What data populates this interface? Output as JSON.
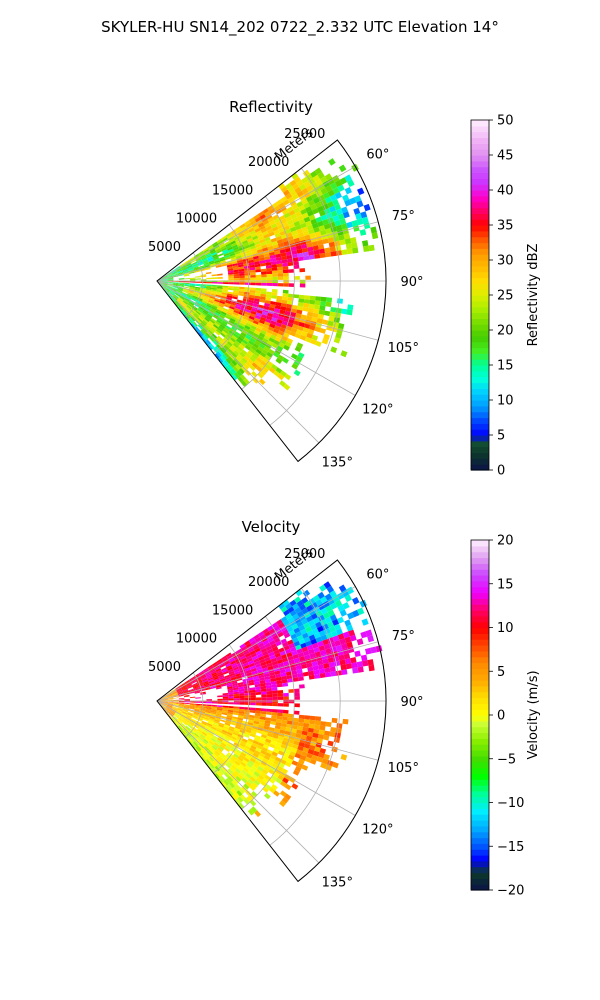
{
  "figure": {
    "title": "SKYLER-HU  SN14_202  0722_2.332 UTC Elevation 14°"
  },
  "chart_data": [
    {
      "type": "heatmap",
      "title": "Reflectivity",
      "projection": "polar-sector",
      "theta_range_deg": [
        52,
        142
      ],
      "theta_zero": "north",
      "theta_direction": "clockwise",
      "r_range_m": [
        0,
        25000
      ],
      "r_ticks": [
        5000,
        10000,
        15000,
        20000,
        25000
      ],
      "r_tick_labels": [
        "5000",
        "10000",
        "15000",
        "20000",
        "25000"
      ],
      "r_label": "Meters",
      "theta_ticks": [
        60,
        75,
        90,
        105,
        120,
        135
      ],
      "theta_tick_labels": [
        "60°",
        "75°",
        "90°",
        "105°",
        "120°",
        "135°"
      ],
      "grid": true,
      "colorbar": {
        "label": "Reflectivity dBZ",
        "range": [
          0,
          50
        ],
        "ticks": [
          0,
          5,
          10,
          15,
          20,
          25,
          30,
          35,
          40,
          45,
          50
        ],
        "tick_labels": [
          "0",
          "5",
          "10",
          "15",
          "20",
          "25",
          "30",
          "35",
          "40",
          "45",
          "50"
        ],
        "stops": [
          {
            "v": 0,
            "c": "#0a1248"
          },
          {
            "v": 2.5,
            "c": "#0e3a2a"
          },
          {
            "v": 4,
            "c": "#134f33"
          },
          {
            "v": 5,
            "c": "#0000ff"
          },
          {
            "v": 7,
            "c": "#0044ff"
          },
          {
            "v": 9,
            "c": "#0099ff"
          },
          {
            "v": 11,
            "c": "#00ccff"
          },
          {
            "v": 13,
            "c": "#00ffdd"
          },
          {
            "v": 15,
            "c": "#00ff99"
          },
          {
            "v": 17,
            "c": "#44ee22"
          },
          {
            "v": 19,
            "c": "#44cc00"
          },
          {
            "v": 21,
            "c": "#77dd00"
          },
          {
            "v": 23,
            "c": "#aaee00"
          },
          {
            "v": 25,
            "c": "#ddee00"
          },
          {
            "v": 27,
            "c": "#ffdd00"
          },
          {
            "v": 29,
            "c": "#ffbb00"
          },
          {
            "v": 31,
            "c": "#ff9900"
          },
          {
            "v": 33,
            "c": "#ff5500"
          },
          {
            "v": 35,
            "c": "#ff0000"
          },
          {
            "v": 37,
            "c": "#ff0066"
          },
          {
            "v": 39,
            "c": "#ff00cc"
          },
          {
            "v": 41,
            "c": "#cc33ff"
          },
          {
            "v": 43,
            "c": "#cc55ff"
          },
          {
            "v": 45,
            "c": "#e090f0"
          },
          {
            "v": 47,
            "c": "#f0b0f5"
          },
          {
            "v": 50,
            "c": "#fff0ff"
          }
        ]
      }
    },
    {
      "type": "heatmap",
      "title": "Velocity",
      "projection": "polar-sector",
      "theta_range_deg": [
        52,
        142
      ],
      "theta_zero": "north",
      "theta_direction": "clockwise",
      "r_range_m": [
        0,
        25000
      ],
      "r_ticks": [
        5000,
        10000,
        15000,
        20000,
        25000
      ],
      "r_tick_labels": [
        "5000",
        "10000",
        "15000",
        "20000",
        "25000"
      ],
      "r_label": "Meters",
      "theta_ticks": [
        60,
        75,
        90,
        105,
        120,
        135
      ],
      "theta_tick_labels": [
        "60°",
        "75°",
        "90°",
        "105°",
        "120°",
        "135°"
      ],
      "grid": true,
      "colorbar": {
        "label": "Velocity (m/s)",
        "range": [
          -20,
          20
        ],
        "ticks": [
          -20,
          -15,
          -10,
          -5,
          0,
          5,
          10,
          15,
          20
        ],
        "tick_labels": [
          "−20",
          "−15",
          "−10",
          "−5",
          "0",
          "5",
          "10",
          "15",
          "20"
        ],
        "stops": [
          {
            "v": -20,
            "c": "#0a1248"
          },
          {
            "v": -18,
            "c": "#0e3a2a"
          },
          {
            "v": -16.5,
            "c": "#0000ff"
          },
          {
            "v": -15,
            "c": "#0055ff"
          },
          {
            "v": -13,
            "c": "#00aaff"
          },
          {
            "v": -11,
            "c": "#00eeff"
          },
          {
            "v": -9,
            "c": "#00ff99"
          },
          {
            "v": -7,
            "c": "#00ff00"
          },
          {
            "v": -5,
            "c": "#44dd00"
          },
          {
            "v": -3,
            "c": "#88ee00"
          },
          {
            "v": -1,
            "c": "#ccff33"
          },
          {
            "v": 0,
            "c": "#ffff00"
          },
          {
            "v": 2,
            "c": "#ffdd00"
          },
          {
            "v": 4,
            "c": "#ffaa00"
          },
          {
            "v": 6,
            "c": "#ff8800"
          },
          {
            "v": 8,
            "c": "#ff4400"
          },
          {
            "v": 10,
            "c": "#ff0000"
          },
          {
            "v": 12,
            "c": "#ff0066"
          },
          {
            "v": 14,
            "c": "#ee00ff"
          },
          {
            "v": 16,
            "c": "#cc44ff"
          },
          {
            "v": 18,
            "c": "#e0a0f0"
          },
          {
            "v": 20,
            "c": "#fff0ff"
          }
        ]
      }
    }
  ]
}
